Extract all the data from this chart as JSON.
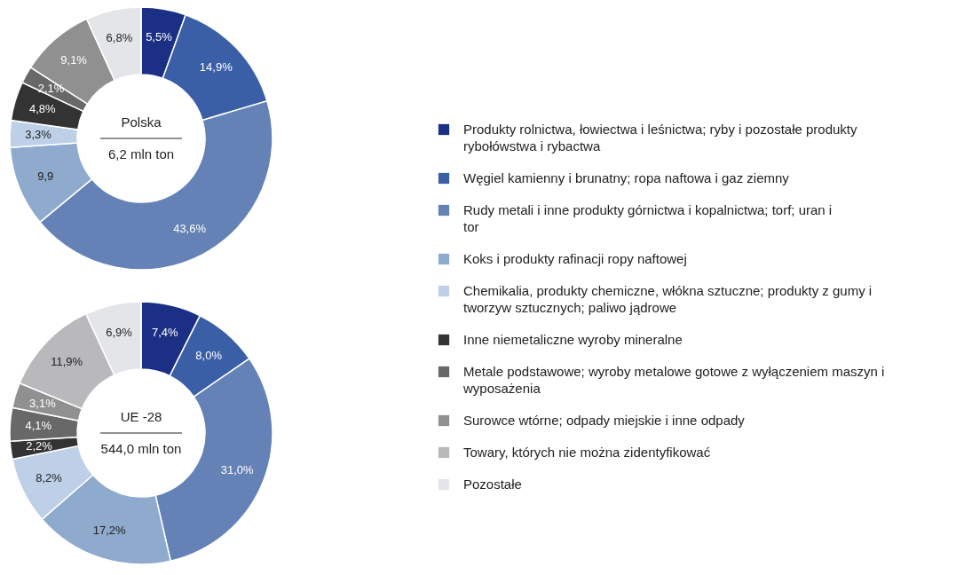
{
  "chart_data": [
    {
      "type": "donut",
      "title": "Polska",
      "subtitle": "6,2 mln ton",
      "legend": "right",
      "categories": [
        "Produkty rolnictwa, łowiectwa i leśnictwa; ryby i pozostałe produkty rybołówstwa i rybactwa",
        "Węgiel kamienny i brunatny; ropa naftowa i gaz ziemny",
        "Rudy metali i inne produkty górnictwa i kopalnictwa; torf; uran i tor",
        "Koks i produkty rafinacji ropy naftowej",
        "Chemikalia, produkty chemiczne, włókna sztuczne; produkty z gumy i tworzyw sztucznych; paliwo jądrowe",
        "Inne niemetaliczne wyroby mineralne",
        "Metale podstawowe; wyroby metalowe gotowe z wyłączeniem maszyn i wyposażenia",
        "Surowce wtórne; odpady miejskie i inne odpady",
        "Towary, których nie można zidentyfikować",
        "Pozostałe"
      ],
      "values": [
        5.5,
        14.9,
        43.6,
        9.9,
        3.3,
        4.8,
        2.1,
        9.1,
        0,
        6.8
      ],
      "value_labels": [
        "5,5%",
        "14,9%",
        "43,6%",
        "9,9",
        "3,3%",
        "4,8%",
        "2,1%",
        "9,1%",
        null,
        "6,8%"
      ],
      "colors": [
        "#1b2f85",
        "#3a5fa6",
        "#6582b6",
        "#8eaacd",
        "#bdd0e8",
        "#333333",
        "#686868",
        "#909090",
        "#b9b9bc",
        "#e4e5e8"
      ]
    },
    {
      "type": "donut",
      "title": "UE -28",
      "subtitle": "544,0 mln ton",
      "categories": [
        null,
        null,
        null,
        null,
        null,
        null,
        null,
        null,
        null,
        null
      ],
      "values": [
        7.4,
        8.0,
        31.0,
        17.2,
        8.2,
        2.2,
        4.1,
        3.1,
        11.9,
        6.9
      ],
      "value_labels": [
        "7,4%",
        "8,0%",
        "31,0%",
        "17,2%",
        "8,2%",
        "2,2%",
        "4,1%",
        "3,1%",
        "11,9%",
        "6,9%"
      ],
      "colors": [
        "#1b2f85",
        "#3a5fa6",
        "#6582b6",
        "#8eaacd",
        "#bdd0e8",
        "#333333",
        "#686868",
        "#909090",
        "#b9b9bc",
        "#e4e5e8"
      ]
    }
  ]
}
